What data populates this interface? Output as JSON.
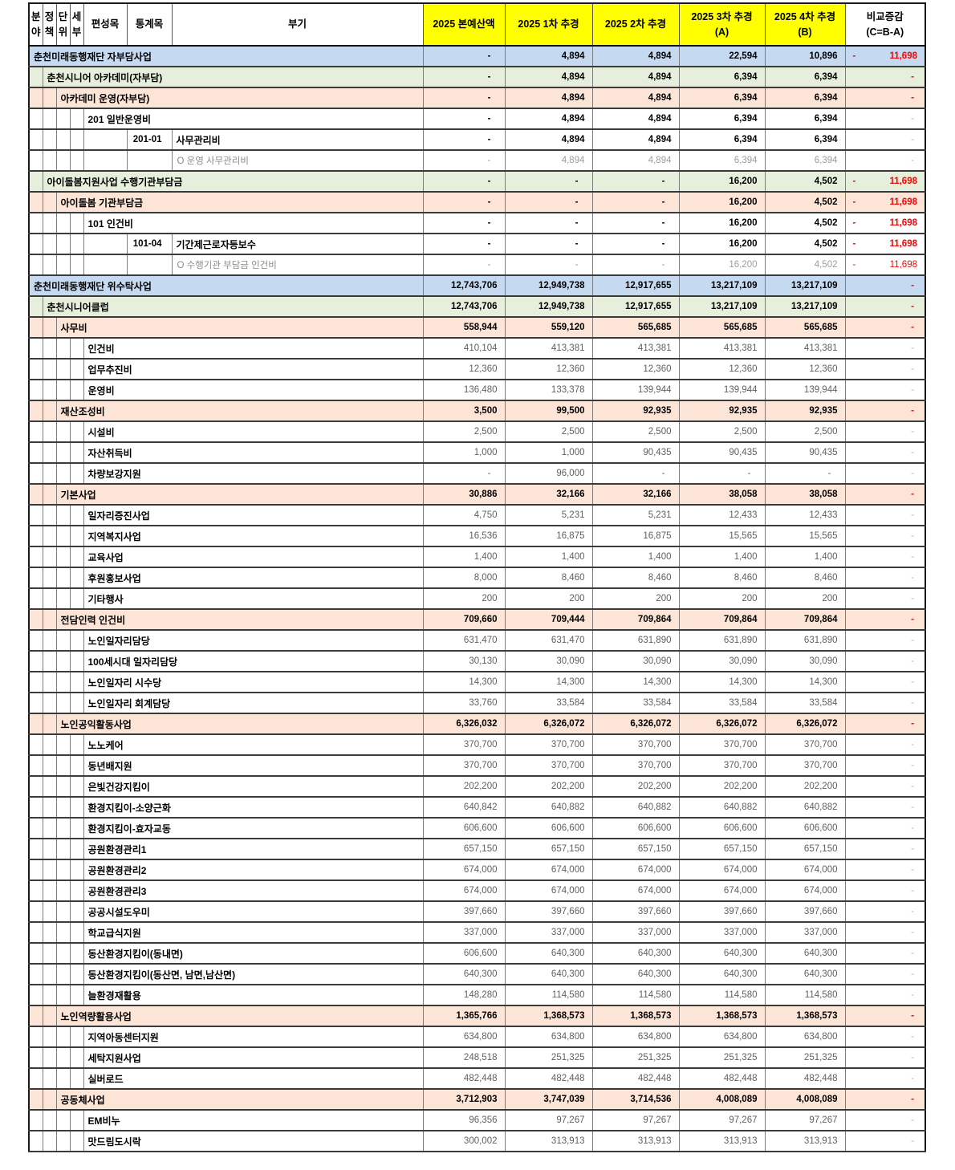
{
  "header": {
    "cells": [
      "분\n야",
      "정\n책",
      "단\n위",
      "세\n부",
      "편성목",
      "통계목",
      "부기"
    ],
    "budget": [
      "2025 본예산액",
      "2025 1차 추경",
      "2025 2차 추경",
      "2025 3차 추경\n(A)",
      "2025 4차 추경\n(B)"
    ],
    "diff": "비교증감\n(C=B-A)"
  },
  "colors": {
    "header_highlight": "#FFFF00",
    "level0_blue": "#C5D9F1",
    "level1_green": "#E5EFDB",
    "level2_peach": "#FCE4D6",
    "negative_red": "#FF0000"
  },
  "rows": [
    {
      "type": "l0",
      "label": "춘천미래동행재단 자부담사업",
      "values": [
        "-",
        "4,894",
        "4,894",
        "22,594",
        "10,896"
      ],
      "diff": "-11,698"
    },
    {
      "type": "l1",
      "label": "춘천시니어 아카데미(자부담)",
      "values": [
        "-",
        "4,894",
        "4,894",
        "6,394",
        "6,394"
      ],
      "diff": ""
    },
    {
      "type": "l2",
      "label": "아카데미 운영(자부담)",
      "values": [
        "-",
        "4,894",
        "4,894",
        "6,394",
        "6,394"
      ],
      "diff": ""
    },
    {
      "type": "item",
      "label": "201 일반운영비",
      "values": [
        "-",
        "4,894",
        "4,894",
        "6,394",
        "6,394"
      ],
      "diff": ""
    },
    {
      "type": "code",
      "code": "201-01",
      "label": "사무관리비",
      "values": [
        "-",
        "4,894",
        "4,894",
        "6,394",
        "6,394"
      ],
      "diff": ""
    },
    {
      "type": "note",
      "label": "O 운영 사무관리비",
      "values": [
        "-",
        "4,894",
        "4,894",
        "6,394",
        "6,394"
      ],
      "diff": ""
    },
    {
      "type": "l1",
      "label": "아이돌봄지원사업 수행기관부담금",
      "values": [
        "-",
        "-",
        "-",
        "16,200",
        "4,502"
      ],
      "diff": "-11,698"
    },
    {
      "type": "l2",
      "label": "아이돌봄 기관부담금",
      "values": [
        "-",
        "-",
        "-",
        "16,200",
        "4,502"
      ],
      "diff": "-11,698"
    },
    {
      "type": "item",
      "label": "101 인건비",
      "values": [
        "-",
        "-",
        "-",
        "16,200",
        "4,502"
      ],
      "diff": "-11,698"
    },
    {
      "type": "code",
      "code": "101-04",
      "label": "기간제근로자등보수",
      "values": [
        "-",
        "-",
        "-",
        "16,200",
        "4,502"
      ],
      "diff": "-11,698"
    },
    {
      "type": "note",
      "label": "O 수행기관 부담금 인건비",
      "values": [
        "-",
        "-",
        "-",
        "16,200",
        "4,502"
      ],
      "diff": "-11,698"
    },
    {
      "type": "l0",
      "label": "춘천미래동행재단 위수탁사업",
      "values": [
        "12,743,706",
        "12,949,738",
        "12,917,655",
        "13,217,109",
        "13,217,109"
      ],
      "diff": ""
    },
    {
      "type": "l1",
      "label": "춘천시니어클럽",
      "values": [
        "12,743,706",
        "12,949,738",
        "12,917,655",
        "13,217,109",
        "13,217,109"
      ],
      "diff": ""
    },
    {
      "type": "l2",
      "label": "사무비",
      "values": [
        "558,944",
        "559,120",
        "565,685",
        "565,685",
        "565,685"
      ],
      "diff": ""
    },
    {
      "type": "sub",
      "label": "인건비",
      "values": [
        "410,104",
        "413,381",
        "413,381",
        "413,381",
        "413,381"
      ],
      "diff": ""
    },
    {
      "type": "sub",
      "label": "업무추진비",
      "values": [
        "12,360",
        "12,360",
        "12,360",
        "12,360",
        "12,360"
      ],
      "diff": ""
    },
    {
      "type": "sub",
      "label": "운영비",
      "values": [
        "136,480",
        "133,378",
        "139,944",
        "139,944",
        "139,944"
      ],
      "diff": ""
    },
    {
      "type": "l2",
      "label": "재산조성비",
      "values": [
        "3,500",
        "99,500",
        "92,935",
        "92,935",
        "92,935"
      ],
      "diff": ""
    },
    {
      "type": "sub",
      "label": "시설비",
      "values": [
        "2,500",
        "2,500",
        "2,500",
        "2,500",
        "2,500"
      ],
      "diff": ""
    },
    {
      "type": "sub",
      "label": "자산취득비",
      "values": [
        "1,000",
        "1,000",
        "90,435",
        "90,435",
        "90,435"
      ],
      "diff": ""
    },
    {
      "type": "sub",
      "label": "차량보강지원",
      "values": [
        "-",
        "96,000",
        "-",
        "-",
        "-"
      ],
      "diff": ""
    },
    {
      "type": "l2",
      "label": "기본사업",
      "values": [
        "30,886",
        "32,166",
        "32,166",
        "38,058",
        "38,058"
      ],
      "diff": ""
    },
    {
      "type": "sub",
      "label": "일자리증진사업",
      "values": [
        "4,750",
        "5,231",
        "5,231",
        "12,433",
        "12,433"
      ],
      "diff": ""
    },
    {
      "type": "sub",
      "label": "지역복지사업",
      "values": [
        "16,536",
        "16,875",
        "16,875",
        "15,565",
        "15,565"
      ],
      "diff": ""
    },
    {
      "type": "sub",
      "label": "교육사업",
      "values": [
        "1,400",
        "1,400",
        "1,400",
        "1,400",
        "1,400"
      ],
      "diff": ""
    },
    {
      "type": "sub",
      "label": "후원홍보사업",
      "values": [
        "8,000",
        "8,460",
        "8,460",
        "8,460",
        "8,460"
      ],
      "diff": ""
    },
    {
      "type": "sub",
      "label": "기타행사",
      "values": [
        "200",
        "200",
        "200",
        "200",
        "200"
      ],
      "diff": ""
    },
    {
      "type": "l2",
      "label": "전담인력 인건비",
      "values": [
        "709,660",
        "709,444",
        "709,864",
        "709,864",
        "709,864"
      ],
      "diff": ""
    },
    {
      "type": "sub",
      "label": "노인일자리담당",
      "values": [
        "631,470",
        "631,470",
        "631,890",
        "631,890",
        "631,890"
      ],
      "diff": ""
    },
    {
      "type": "sub",
      "label": "100세시대 일자리담당",
      "values": [
        "30,130",
        "30,090",
        "30,090",
        "30,090",
        "30,090"
      ],
      "diff": ""
    },
    {
      "type": "sub",
      "label": "노인일자리 시수당",
      "values": [
        "14,300",
        "14,300",
        "14,300",
        "14,300",
        "14,300"
      ],
      "diff": ""
    },
    {
      "type": "sub",
      "label": "노인일자리 회계담당",
      "values": [
        "33,760",
        "33,584",
        "33,584",
        "33,584",
        "33,584"
      ],
      "diff": ""
    },
    {
      "type": "l2",
      "label": "노인공익활동사업",
      "values": [
        "6,326,032",
        "6,326,072",
        "6,326,072",
        "6,326,072",
        "6,326,072"
      ],
      "diff": ""
    },
    {
      "type": "sub",
      "label": "노노케어",
      "values": [
        "370,700",
        "370,700",
        "370,700",
        "370,700",
        "370,700"
      ],
      "diff": ""
    },
    {
      "type": "sub",
      "label": "동년배지원",
      "values": [
        "370,700",
        "370,700",
        "370,700",
        "370,700",
        "370,700"
      ],
      "diff": ""
    },
    {
      "type": "sub",
      "label": "은빛건강지킴이",
      "values": [
        "202,200",
        "202,200",
        "202,200",
        "202,200",
        "202,200"
      ],
      "diff": ""
    },
    {
      "type": "sub",
      "label": "환경지킴이-소양근화",
      "values": [
        "640,842",
        "640,882",
        "640,882",
        "640,882",
        "640,882"
      ],
      "diff": ""
    },
    {
      "type": "sub",
      "label": "환경지킴이-효자교동",
      "values": [
        "606,600",
        "606,600",
        "606,600",
        "606,600",
        "606,600"
      ],
      "diff": ""
    },
    {
      "type": "sub",
      "label": "공원환경관리1",
      "values": [
        "657,150",
        "657,150",
        "657,150",
        "657,150",
        "657,150"
      ],
      "diff": ""
    },
    {
      "type": "sub",
      "label": "공원환경관리2",
      "values": [
        "674,000",
        "674,000",
        "674,000",
        "674,000",
        "674,000"
      ],
      "diff": ""
    },
    {
      "type": "sub",
      "label": "공원환경관리3",
      "values": [
        "674,000",
        "674,000",
        "674,000",
        "674,000",
        "674,000"
      ],
      "diff": ""
    },
    {
      "type": "sub",
      "label": "공공시설도우미",
      "values": [
        "397,660",
        "397,660",
        "397,660",
        "397,660",
        "397,660"
      ],
      "diff": ""
    },
    {
      "type": "sub",
      "label": "학교급식지원",
      "values": [
        "337,000",
        "337,000",
        "337,000",
        "337,000",
        "337,000"
      ],
      "diff": ""
    },
    {
      "type": "sub",
      "label": "동산환경지킴이(동내면)",
      "values": [
        "606,600",
        "640,300",
        "640,300",
        "640,300",
        "640,300"
      ],
      "diff": ""
    },
    {
      "type": "sub",
      "label": "동산환경지킴이(동산면, 남면,남산면)",
      "values": [
        "640,300",
        "640,300",
        "640,300",
        "640,300",
        "640,300"
      ],
      "diff": ""
    },
    {
      "type": "sub",
      "label": "늘환경재활용",
      "values": [
        "148,280",
        "114,580",
        "114,580",
        "114,580",
        "114,580"
      ],
      "diff": ""
    },
    {
      "type": "l2",
      "label": "노인역량활용사업",
      "values": [
        "1,365,766",
        "1,368,573",
        "1,368,573",
        "1,368,573",
        "1,368,573"
      ],
      "diff": ""
    },
    {
      "type": "sub",
      "label": "지역아동센터지원",
      "values": [
        "634,800",
        "634,800",
        "634,800",
        "634,800",
        "634,800"
      ],
      "diff": ""
    },
    {
      "type": "sub",
      "label": "세탁지원사업",
      "values": [
        "248,518",
        "251,325",
        "251,325",
        "251,325",
        "251,325"
      ],
      "diff": ""
    },
    {
      "type": "sub",
      "label": "실버로드",
      "values": [
        "482,448",
        "482,448",
        "482,448",
        "482,448",
        "482,448"
      ],
      "diff": ""
    },
    {
      "type": "l2",
      "label": "공동체사업",
      "values": [
        "3,712,903",
        "3,747,039",
        "3,714,536",
        "4,008,089",
        "4,008,089"
      ],
      "diff": ""
    },
    {
      "type": "sub",
      "label": "EM비누",
      "values": [
        "96,356",
        "97,267",
        "97,267",
        "97,267",
        "97,267"
      ],
      "diff": ""
    },
    {
      "type": "sub",
      "label": "맛드림도시락",
      "values": [
        "300,002",
        "313,913",
        "313,913",
        "313,913",
        "313,913"
      ],
      "diff": ""
    }
  ]
}
